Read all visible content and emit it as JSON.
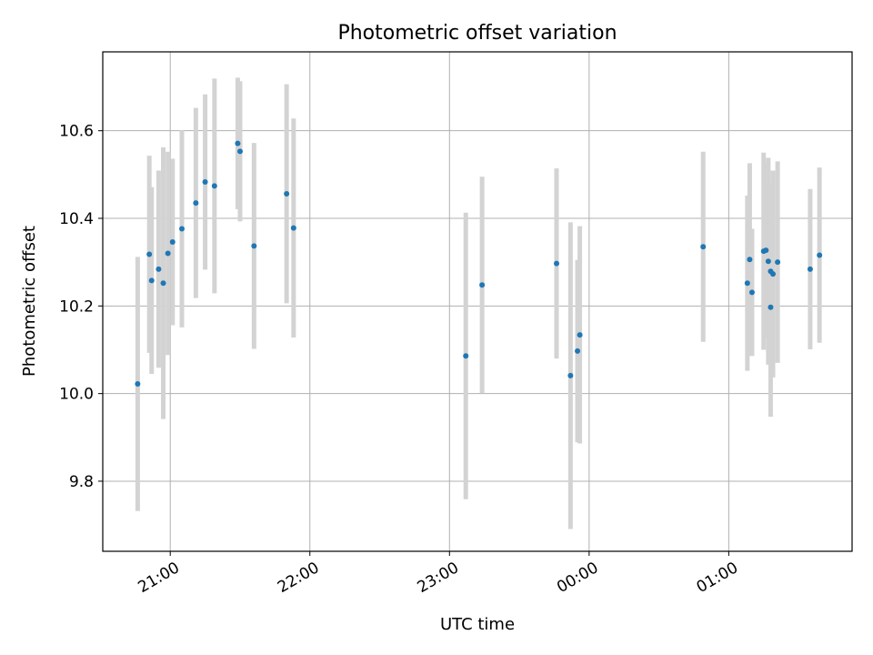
{
  "chart_data": {
    "type": "scatter",
    "title": "Photometric offset variation",
    "xlabel": "UTC time",
    "ylabel": "Photometric offset",
    "x_axis_type": "time",
    "xlim": [
      "20:31",
      "01:53"
    ],
    "ylim": [
      9.64,
      10.78
    ],
    "x_ticks": [
      "21:00",
      "22:00",
      "23:00",
      "00:00",
      "01:00"
    ],
    "y_ticks": [
      "9.8",
      "10.0",
      "10.2",
      "10.4",
      "10.6"
    ],
    "x_tick_rotation_deg": 30,
    "grid": true,
    "legend": "none",
    "colors": {
      "marker": "#1f77b4",
      "errorbar": "#d3d3d3",
      "grid": "#b0b0b0"
    },
    "points": [
      {
        "x": "20:46",
        "y": 10.022,
        "yerr": 0.29
      },
      {
        "x": "20:51",
        "y": 10.318,
        "yerr": 0.225
      },
      {
        "x": "20:52",
        "y": 10.258,
        "yerr": 0.213
      },
      {
        "x": "20:55",
        "y": 10.284,
        "yerr": 0.225
      },
      {
        "x": "20:57",
        "y": 10.252,
        "yerr": 0.31
      },
      {
        "x": "20:59",
        "y": 10.32,
        "yerr": 0.232
      },
      {
        "x": "21:01",
        "y": 10.346,
        "yerr": 0.19
      },
      {
        "x": "21:05",
        "y": 10.376,
        "yerr": 0.225
      },
      {
        "x": "21:11",
        "y": 10.435,
        "yerr": 0.217
      },
      {
        "x": "21:15",
        "y": 10.483,
        "yerr": 0.2
      },
      {
        "x": "21:19",
        "y": 10.474,
        "yerr": 0.245
      },
      {
        "x": "21:29",
        "y": 10.571,
        "yerr": 0.15
      },
      {
        "x": "21:30",
        "y": 10.553,
        "yerr": 0.16
      },
      {
        "x": "21:36",
        "y": 10.337,
        "yerr": 0.235
      },
      {
        "x": "21:50",
        "y": 10.456,
        "yerr": 0.25
      },
      {
        "x": "21:53",
        "y": 10.378,
        "yerr": 0.25
      },
      {
        "x": "23:07",
        "y": 10.086,
        "yerr": 0.327
      },
      {
        "x": "23:14",
        "y": 10.248,
        "yerr": 0.247
      },
      {
        "x": "23:46",
        "y": 10.297,
        "yerr": 0.217
      },
      {
        "x": "23:52",
        "y": 10.041,
        "yerr": 0.35
      },
      {
        "x": "23:55",
        "y": 10.097,
        "yerr": 0.208
      },
      {
        "x": "23:56",
        "y": 10.134,
        "yerr": 0.248
      },
      {
        "x": "00:49",
        "y": 10.335,
        "yerr": 0.217
      },
      {
        "x": "01:08",
        "y": 10.252,
        "yerr": 0.2
      },
      {
        "x": "01:09",
        "y": 10.306,
        "yerr": 0.22
      },
      {
        "x": "01:10",
        "y": 10.231,
        "yerr": 0.145
      },
      {
        "x": "01:15",
        "y": 10.325,
        "yerr": 0.225
      },
      {
        "x": "01:16",
        "y": 10.327,
        "yerr": 0.2
      },
      {
        "x": "01:17",
        "y": 10.302,
        "yerr": 0.236
      },
      {
        "x": "01:18",
        "y": 10.197,
        "yerr": 0.25
      },
      {
        "x": "01:18",
        "y": 10.279,
        "yerr": 0.2
      },
      {
        "x": "01:19",
        "y": 10.273,
        "yerr": 0.236
      },
      {
        "x": "01:21",
        "y": 10.3,
        "yerr": 0.23
      },
      {
        "x": "01:35",
        "y": 10.284,
        "yerr": 0.183
      },
      {
        "x": "01:39",
        "y": 10.316,
        "yerr": 0.2
      }
    ]
  }
}
